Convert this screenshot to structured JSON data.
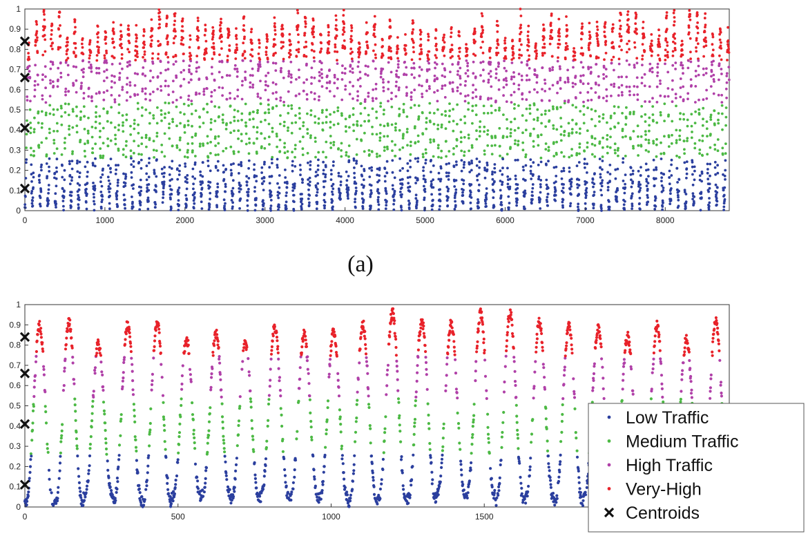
{
  "figure": {
    "caption_a": "(a)"
  },
  "chart_data": [
    {
      "type": "scatter",
      "panel": "a",
      "title": "",
      "xlabel": "",
      "ylabel": "",
      "xlim": [
        0,
        8800
      ],
      "ylim": [
        0,
        1
      ],
      "xticks": [
        0,
        1000,
        2000,
        3000,
        4000,
        5000,
        6000,
        7000,
        8000
      ],
      "yticks": [
        0,
        0.1,
        0.2,
        0.3,
        0.4,
        0.5,
        0.6,
        0.7,
        0.8,
        0.9,
        1
      ],
      "ytick_labels": [
        "0",
        "0.1",
        "0.2",
        "0.3",
        "0.4",
        "0.5",
        "0.6",
        "0.7",
        "0.8",
        "0.9",
        "1"
      ],
      "grid": false,
      "daily_period": 96,
      "n_points": 8800,
      "cluster_bounds": [
        0,
        0.26,
        0.535,
        0.745,
        1.0
      ],
      "series": [
        {
          "name": "Low Traffic",
          "color": "#2b3f9e",
          "y_range": [
            0.0,
            0.26
          ]
        },
        {
          "name": "Medium Traffic",
          "color": "#4cb944",
          "y_range": [
            0.26,
            0.535
          ]
        },
        {
          "name": "High Traffic",
          "color": "#b040a8",
          "y_range": [
            0.535,
            0.745
          ]
        },
        {
          "name": "Very-High",
          "color": "#e8222a",
          "y_range": [
            0.745,
            1.0
          ]
        }
      ],
      "centroids": {
        "x": [
          0,
          0,
          0,
          0
        ],
        "y": [
          0.11,
          0.41,
          0.66,
          0.84
        ]
      }
    },
    {
      "type": "scatter",
      "panel": "b",
      "title": "",
      "xlabel": "",
      "ylabel": "",
      "xlim": [
        0,
        2300
      ],
      "ylim": [
        0,
        1
      ],
      "xticks": [
        0,
        500,
        1000,
        1500,
        2000
      ],
      "yticks": [
        0,
        0.1,
        0.2,
        0.3,
        0.4,
        0.5,
        0.6,
        0.7,
        0.8,
        0.9,
        1
      ],
      "ytick_labels": [
        "0",
        "0.1",
        "0.2",
        "0.3",
        "0.4",
        "0.5",
        "0.6",
        "0.7",
        "0.8",
        "0.9",
        "1"
      ],
      "grid": false,
      "daily_period": 96,
      "n_points": 2300,
      "cluster_bounds": [
        0,
        0.26,
        0.535,
        0.745,
        1.0
      ],
      "series": [
        {
          "name": "Low Traffic",
          "color": "#2b3f9e",
          "y_range": [
            0.0,
            0.26
          ]
        },
        {
          "name": "Medium Traffic",
          "color": "#4cb944",
          "y_range": [
            0.26,
            0.535
          ]
        },
        {
          "name": "High Traffic",
          "color": "#b040a8",
          "y_range": [
            0.535,
            0.745
          ]
        },
        {
          "name": "Very-High",
          "color": "#e8222a",
          "y_range": [
            0.745,
            1.0
          ]
        }
      ],
      "centroids": {
        "x": [
          0,
          0,
          0,
          0
        ],
        "y": [
          0.11,
          0.41,
          0.66,
          0.84
        ]
      },
      "legend": {
        "placement": "bottom-right",
        "entries": [
          {
            "label": "Low Traffic",
            "marker": "dot",
            "color": "#2b3f9e"
          },
          {
            "label": "Medium Traffic",
            "marker": "dot",
            "color": "#4cb944"
          },
          {
            "label": "High Traffic",
            "marker": "dot",
            "color": "#b040a8"
          },
          {
            "label": "Very-High",
            "marker": "dot",
            "color": "#e8222a"
          },
          {
            "label": "Centroids",
            "marker": "x",
            "color": "#111111"
          }
        ]
      }
    }
  ]
}
